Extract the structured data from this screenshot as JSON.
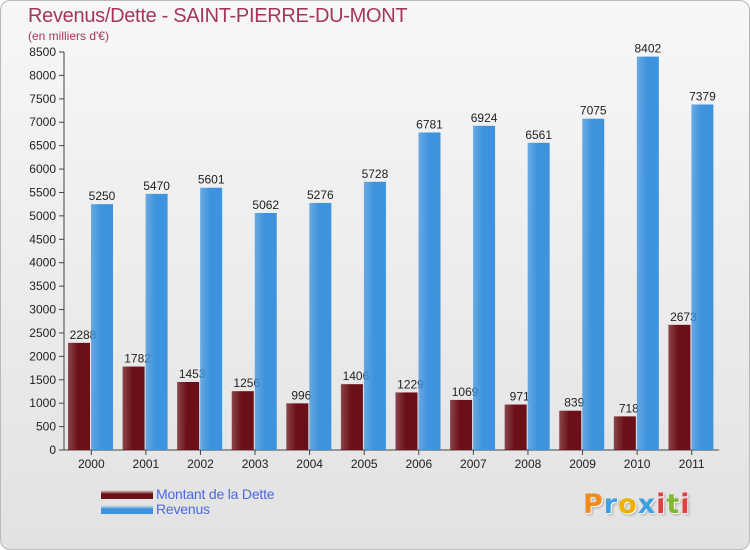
{
  "title": "Revenus/Dette - SAINT-PIERRE-DU-MONT",
  "subtitle": "(en milliers d'€)",
  "colors": {
    "title": "#a3365a",
    "dette": "#6b1018",
    "revenus": "#3d93dd",
    "legend_text": "#4b68e0"
  },
  "legend": {
    "dette": "Montant de la Dette",
    "revenus": "Revenus"
  },
  "logo": {
    "letters": [
      "P",
      "r",
      "o",
      "x",
      "i",
      "t",
      "i"
    ],
    "colors": [
      "#f08a1c",
      "#3fa0e0",
      "#f0b000",
      "#3fa0e0",
      "#e04040",
      "#80b830",
      "#e04040"
    ]
  },
  "chart_data": {
    "type": "bar",
    "title": "Revenus/Dette - SAINT-PIERRE-DU-MONT",
    "ylabel": "(en milliers d'€)",
    "xlabel": "",
    "ylim": [
      0,
      8500
    ],
    "ytick_step": 500,
    "grid": false,
    "legend_position": "bottom-left",
    "categories": [
      "2000",
      "2001",
      "2002",
      "2003",
      "2004",
      "2005",
      "2006",
      "2007",
      "2008",
      "2009",
      "2010",
      "2011"
    ],
    "series": [
      {
        "name": "Montant de la Dette",
        "values": [
          2288,
          1782,
          1453,
          1256,
          996,
          1406,
          1229,
          1069,
          971,
          839,
          718,
          2673
        ],
        "labels": [
          "2288",
          "1782",
          "1453",
          "1256",
          "996",
          "1406",
          "1229",
          "1069",
          "971",
          "839",
          "718",
          "2673"
        ]
      },
      {
        "name": "Revenus",
        "values": [
          5250,
          5470,
          5601,
          5062,
          5276,
          5728,
          6781,
          6924,
          6561,
          7075,
          8402,
          7379
        ],
        "labels": [
          "5250",
          "5470",
          "5601",
          "5062",
          "5276",
          "5728",
          "6781",
          "6924",
          "6561",
          "7075",
          "8402",
          "7379"
        ]
      }
    ]
  }
}
